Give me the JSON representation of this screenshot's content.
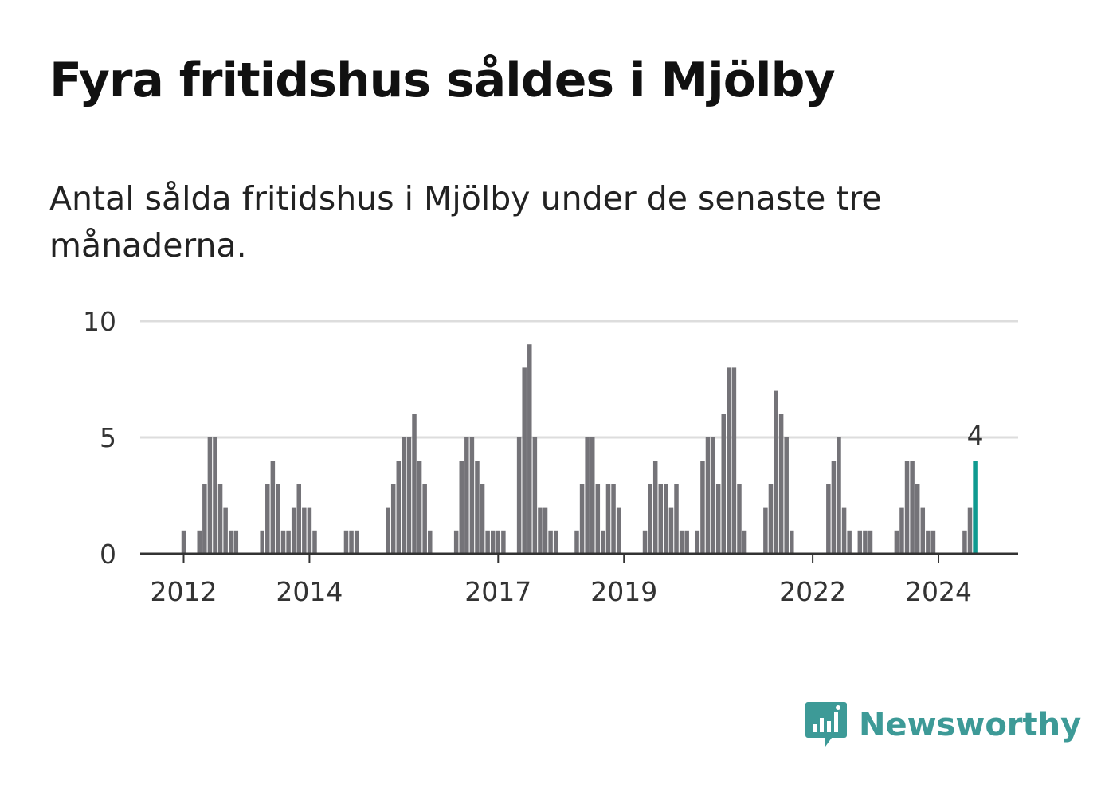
{
  "title": "Fyra fritidshus såldes i Mjölby",
  "subtitle": "Antal sålda fritidshus i Mjölby under de senaste tre månaderna.",
  "brand": {
    "name": "Newsworthy",
    "color": "#3d9a97",
    "icon": "chart-bubble-icon"
  },
  "colors": {
    "bar": "#747378",
    "highlight": "#0f9a90",
    "grid": "#dddddd",
    "axis": "#333333"
  },
  "chart_data": {
    "type": "bar",
    "title": "Fyra fritidshus såldes i Mjölby",
    "subtitle": "Antal sålda fritidshus i Mjölby under de senaste tre månaderna.",
    "xlabel": "",
    "ylabel": "",
    "ylim": [
      0,
      10
    ],
    "yticks": [
      0,
      5,
      10
    ],
    "xticks": [
      "2012",
      "2014",
      "2017",
      "2019",
      "2022",
      "2024"
    ],
    "grid": true,
    "highlight": {
      "date": "2024-08",
      "value": 4,
      "label": "4"
    },
    "series": [
      {
        "values": [
          {
            "date": "2011-11",
            "value": 0
          },
          {
            "date": "2011-12",
            "value": 0
          },
          {
            "date": "2012-01",
            "value": 1
          },
          {
            "date": "2012-02",
            "value": 0
          },
          {
            "date": "2012-03",
            "value": 0
          },
          {
            "date": "2012-04",
            "value": 1
          },
          {
            "date": "2012-05",
            "value": 3
          },
          {
            "date": "2012-06",
            "value": 5
          },
          {
            "date": "2012-07",
            "value": 5
          },
          {
            "date": "2012-08",
            "value": 3
          },
          {
            "date": "2012-09",
            "value": 2
          },
          {
            "date": "2012-10",
            "value": 1
          },
          {
            "date": "2012-11",
            "value": 1
          },
          {
            "date": "2012-12",
            "value": 0
          },
          {
            "date": "2013-01",
            "value": 0
          },
          {
            "date": "2013-02",
            "value": 0
          },
          {
            "date": "2013-03",
            "value": 0
          },
          {
            "date": "2013-04",
            "value": 1
          },
          {
            "date": "2013-05",
            "value": 3
          },
          {
            "date": "2013-06",
            "value": 4
          },
          {
            "date": "2013-07",
            "value": 3
          },
          {
            "date": "2013-08",
            "value": 1
          },
          {
            "date": "2013-09",
            "value": 1
          },
          {
            "date": "2013-10",
            "value": 2
          },
          {
            "date": "2013-11",
            "value": 3
          },
          {
            "date": "2013-12",
            "value": 2
          },
          {
            "date": "2014-01",
            "value": 2
          },
          {
            "date": "2014-02",
            "value": 1
          },
          {
            "date": "2014-03",
            "value": 0
          },
          {
            "date": "2014-04",
            "value": 0
          },
          {
            "date": "2014-05",
            "value": 0
          },
          {
            "date": "2014-06",
            "value": 0
          },
          {
            "date": "2014-07",
            "value": 0
          },
          {
            "date": "2014-08",
            "value": 1
          },
          {
            "date": "2014-09",
            "value": 1
          },
          {
            "date": "2014-10",
            "value": 1
          },
          {
            "date": "2014-11",
            "value": 0
          },
          {
            "date": "2014-12",
            "value": 0
          },
          {
            "date": "2015-01",
            "value": 0
          },
          {
            "date": "2015-02",
            "value": 0
          },
          {
            "date": "2015-03",
            "value": 0
          },
          {
            "date": "2015-04",
            "value": 2
          },
          {
            "date": "2015-05",
            "value": 3
          },
          {
            "date": "2015-06",
            "value": 4
          },
          {
            "date": "2015-07",
            "value": 5
          },
          {
            "date": "2015-08",
            "value": 5
          },
          {
            "date": "2015-09",
            "value": 6
          },
          {
            "date": "2015-10",
            "value": 4
          },
          {
            "date": "2015-11",
            "value": 3
          },
          {
            "date": "2015-12",
            "value": 1
          },
          {
            "date": "2016-01",
            "value": 0
          },
          {
            "date": "2016-02",
            "value": 0
          },
          {
            "date": "2016-03",
            "value": 0
          },
          {
            "date": "2016-04",
            "value": 0
          },
          {
            "date": "2016-05",
            "value": 1
          },
          {
            "date": "2016-06",
            "value": 4
          },
          {
            "date": "2016-07",
            "value": 5
          },
          {
            "date": "2016-08",
            "value": 5
          },
          {
            "date": "2016-09",
            "value": 4
          },
          {
            "date": "2016-10",
            "value": 3
          },
          {
            "date": "2016-11",
            "value": 1
          },
          {
            "date": "2016-12",
            "value": 1
          },
          {
            "date": "2017-01",
            "value": 1
          },
          {
            "date": "2017-02",
            "value": 1
          },
          {
            "date": "2017-03",
            "value": 0
          },
          {
            "date": "2017-04",
            "value": 0
          },
          {
            "date": "2017-05",
            "value": 5
          },
          {
            "date": "2017-06",
            "value": 8
          },
          {
            "date": "2017-07",
            "value": 9
          },
          {
            "date": "2017-08",
            "value": 5
          },
          {
            "date": "2017-09",
            "value": 2
          },
          {
            "date": "2017-10",
            "value": 2
          },
          {
            "date": "2017-11",
            "value": 1
          },
          {
            "date": "2017-12",
            "value": 1
          },
          {
            "date": "2018-01",
            "value": 0
          },
          {
            "date": "2018-02",
            "value": 0
          },
          {
            "date": "2018-03",
            "value": 0
          },
          {
            "date": "2018-04",
            "value": 1
          },
          {
            "date": "2018-05",
            "value": 3
          },
          {
            "date": "2018-06",
            "value": 5
          },
          {
            "date": "2018-07",
            "value": 5
          },
          {
            "date": "2018-08",
            "value": 3
          },
          {
            "date": "2018-09",
            "value": 1
          },
          {
            "date": "2018-10",
            "value": 3
          },
          {
            "date": "2018-11",
            "value": 3
          },
          {
            "date": "2018-12",
            "value": 2
          },
          {
            "date": "2019-01",
            "value": 0
          },
          {
            "date": "2019-02",
            "value": 0
          },
          {
            "date": "2019-03",
            "value": 0
          },
          {
            "date": "2019-04",
            "value": 0
          },
          {
            "date": "2019-05",
            "value": 1
          },
          {
            "date": "2019-06",
            "value": 3
          },
          {
            "date": "2019-07",
            "value": 4
          },
          {
            "date": "2019-08",
            "value": 3
          },
          {
            "date": "2019-09",
            "value": 3
          },
          {
            "date": "2019-10",
            "value": 2
          },
          {
            "date": "2019-11",
            "value": 3
          },
          {
            "date": "2019-12",
            "value": 1
          },
          {
            "date": "2020-01",
            "value": 1
          },
          {
            "date": "2020-02",
            "value": 0
          },
          {
            "date": "2020-03",
            "value": 1
          },
          {
            "date": "2020-04",
            "value": 4
          },
          {
            "date": "2020-05",
            "value": 5
          },
          {
            "date": "2020-06",
            "value": 5
          },
          {
            "date": "2020-07",
            "value": 3
          },
          {
            "date": "2020-08",
            "value": 6
          },
          {
            "date": "2020-09",
            "value": 8
          },
          {
            "date": "2020-10",
            "value": 8
          },
          {
            "date": "2020-11",
            "value": 3
          },
          {
            "date": "2020-12",
            "value": 1
          },
          {
            "date": "2021-01",
            "value": 0
          },
          {
            "date": "2021-02",
            "value": 0
          },
          {
            "date": "2021-03",
            "value": 0
          },
          {
            "date": "2021-04",
            "value": 2
          },
          {
            "date": "2021-05",
            "value": 3
          },
          {
            "date": "2021-06",
            "value": 7
          },
          {
            "date": "2021-07",
            "value": 6
          },
          {
            "date": "2021-08",
            "value": 5
          },
          {
            "date": "2021-09",
            "value": 1
          },
          {
            "date": "2021-10",
            "value": 0
          },
          {
            "date": "2021-11",
            "value": 0
          },
          {
            "date": "2021-12",
            "value": 0
          },
          {
            "date": "2022-01",
            "value": 0
          },
          {
            "date": "2022-02",
            "value": 0
          },
          {
            "date": "2022-03",
            "value": 0
          },
          {
            "date": "2022-04",
            "value": 3
          },
          {
            "date": "2022-05",
            "value": 4
          },
          {
            "date": "2022-06",
            "value": 5
          },
          {
            "date": "2022-07",
            "value": 2
          },
          {
            "date": "2022-08",
            "value": 1
          },
          {
            "date": "2022-09",
            "value": 0
          },
          {
            "date": "2022-10",
            "value": 1
          },
          {
            "date": "2022-11",
            "value": 1
          },
          {
            "date": "2022-12",
            "value": 1
          },
          {
            "date": "2023-01",
            "value": 0
          },
          {
            "date": "2023-02",
            "value": 0
          },
          {
            "date": "2023-03",
            "value": 0
          },
          {
            "date": "2023-04",
            "value": 0
          },
          {
            "date": "2023-05",
            "value": 1
          },
          {
            "date": "2023-06",
            "value": 2
          },
          {
            "date": "2023-07",
            "value": 4
          },
          {
            "date": "2023-08",
            "value": 4
          },
          {
            "date": "2023-09",
            "value": 3
          },
          {
            "date": "2023-10",
            "value": 2
          },
          {
            "date": "2023-11",
            "value": 1
          },
          {
            "date": "2023-12",
            "value": 1
          },
          {
            "date": "2024-01",
            "value": 0
          },
          {
            "date": "2024-02",
            "value": 0
          },
          {
            "date": "2024-03",
            "value": 0
          },
          {
            "date": "2024-04",
            "value": 0
          },
          {
            "date": "2024-05",
            "value": 0
          },
          {
            "date": "2024-06",
            "value": 1
          },
          {
            "date": "2024-07",
            "value": 2
          },
          {
            "date": "2024-08",
            "value": 4
          }
        ]
      }
    ]
  }
}
